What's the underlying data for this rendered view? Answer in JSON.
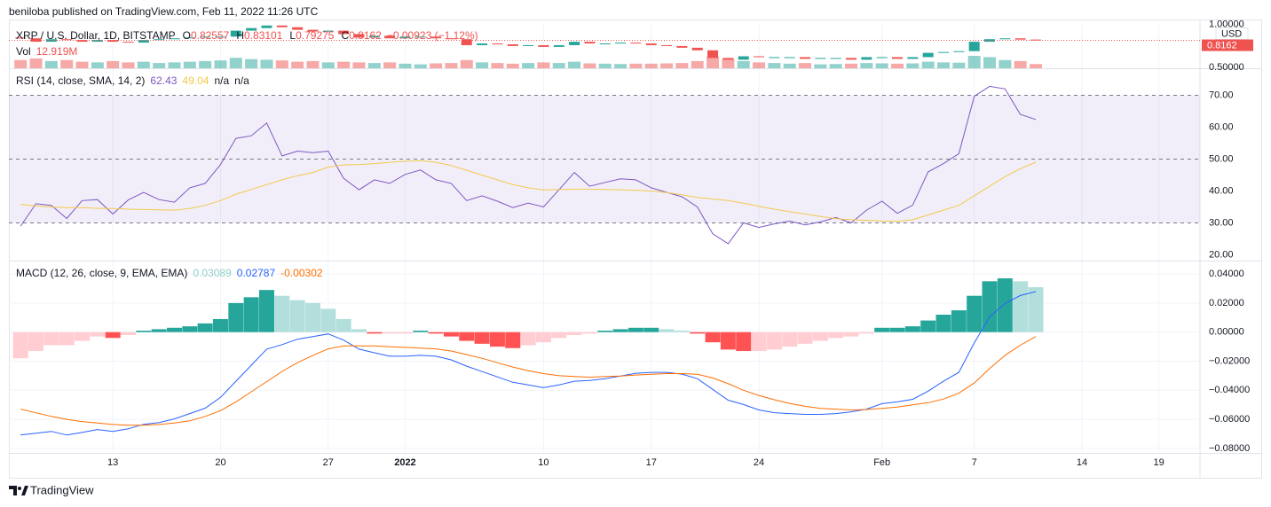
{
  "header": "beniloba published on TradingView.com, Feb 11, 2022 11:26 UTC",
  "footer": "TradingView",
  "chart_data": [
    {
      "type": "candlestick",
      "legend": {
        "symbol": "XRP / U.S. Dollar, 1D, BITSTAMP",
        "keys": [
          "O",
          "H",
          "L",
          "C"
        ],
        "high": 0.83101,
        "low": 0.79275,
        "change_label": "−0.00923 (−1.12%)"
      },
      "currency": "USD",
      "volume_name": "Vol",
      "volume_label": "12.919M",
      "up_color": "#26a69a",
      "down_color": "#ef5350",
      "open": [
        0.85,
        0.84,
        0.8,
        0.83,
        0.82,
        0.8,
        0.82,
        0.8,
        0.79,
        0.82,
        0.83,
        0.84,
        0.85,
        0.86,
        0.86,
        0.93,
        0.96,
        0.99,
        0.97,
        0.94,
        0.92,
        0.93,
        0.89,
        0.85,
        0.87,
        0.84,
        0.86,
        0.86,
        0.84,
        0.83,
        0.76,
        0.78,
        0.77,
        0.75,
        0.76,
        0.74,
        0.76,
        0.8,
        0.78,
        0.78,
        0.79,
        0.78,
        0.76,
        0.75,
        0.73,
        0.7,
        0.61,
        0.59,
        0.63,
        0.62,
        0.62,
        0.62,
        0.6,
        0.61,
        0.61,
        0.59,
        0.62,
        0.62,
        0.6,
        0.62,
        0.67,
        0.68,
        0.69,
        0.8,
        0.83,
        0.84,
        0.82557,
        null,
        null,
        null,
        null,
        null,
        null,
        null,
        null,
        null,
        null
      ],
      "close": [
        0.84,
        0.8,
        0.83,
        0.82,
        0.8,
        0.82,
        0.8,
        0.79,
        0.82,
        0.83,
        0.84,
        0.85,
        0.86,
        0.86,
        0.93,
        0.96,
        0.99,
        0.97,
        0.94,
        0.92,
        0.93,
        0.89,
        0.85,
        0.87,
        0.84,
        0.86,
        0.86,
        0.84,
        0.83,
        0.76,
        0.78,
        0.77,
        0.75,
        0.76,
        0.74,
        0.76,
        0.8,
        0.78,
        0.78,
        0.79,
        0.78,
        0.76,
        0.75,
        0.73,
        0.7,
        0.61,
        0.59,
        0.63,
        0.62,
        0.62,
        0.62,
        0.6,
        0.61,
        0.61,
        0.59,
        0.62,
        0.62,
        0.6,
        0.62,
        0.67,
        0.68,
        0.69,
        0.8,
        0.83,
        0.84,
        0.82543,
        0.8162,
        null,
        null,
        null,
        null,
        null,
        null,
        null,
        null,
        null,
        null
      ],
      "volume": [
        25,
        30,
        22,
        25,
        20,
        18,
        22,
        18,
        20,
        16,
        18,
        20,
        22,
        24,
        32,
        28,
        26,
        24,
        20,
        22,
        18,
        20,
        18,
        16,
        18,
        14,
        12,
        15,
        16,
        25,
        18,
        16,
        14,
        16,
        18,
        16,
        20,
        15,
        14,
        13,
        14,
        14,
        15,
        16,
        22,
        35,
        28,
        22,
        18,
        16,
        14,
        16,
        12,
        13,
        14,
        16,
        15,
        14,
        15,
        20,
        18,
        17,
        38,
        34,
        25,
        22,
        12.919,
        null,
        null,
        null,
        null,
        null,
        null,
        null,
        null,
        null,
        null
      ],
      "ylim": [
        0.49,
        1.05
      ],
      "yticks": [
        {
          "value": 0.5,
          "label": "0.50000"
        },
        {
          "value": 1,
          "label": "1.00000"
        }
      ]
    },
    {
      "type": "line",
      "title": "RSI (14, close, SMA, 14, 2)",
      "na_labels": [
        "n/a",
        "n/a"
      ],
      "series": [
        {
          "color": "#7e57c2",
          "values": [
            29,
            36,
            35.5,
            31.4,
            37,
            37.3,
            32.8,
            37.2,
            39.6,
            37.3,
            36.5,
            41,
            42.4,
            48.3,
            56.5,
            57.3,
            61.3,
            51,
            52.5,
            52,
            52.5,
            44,
            40.4,
            43.5,
            42.4,
            45.2,
            46.6,
            43.5,
            42.4,
            37,
            38.5,
            36.8,
            34.8,
            36.2,
            35,
            40.4,
            45.8,
            41.5,
            42.7,
            43.8,
            43.5,
            41,
            39.6,
            38.2,
            35,
            26.6,
            23.5,
            30,
            28.6,
            29.7,
            30.6,
            29.4,
            30.3,
            31.7,
            30,
            34,
            36.8,
            33,
            35.6,
            46,
            48.6,
            51.7,
            69.7,
            72.8,
            72,
            64,
            62.43,
            null,
            null,
            null,
            null,
            null,
            null,
            null,
            null,
            null,
            null
          ]
        },
        {
          "color": "#f2c94c",
          "values": [
            35.8,
            35.3,
            35,
            34.8,
            34.8,
            34.6,
            34.5,
            34.3,
            34.2,
            34.1,
            34,
            34.5,
            35.5,
            37,
            39,
            40.5,
            42,
            43.5,
            44.8,
            45.8,
            47.5,
            48.2,
            48.3,
            48.6,
            49,
            49.3,
            49.5,
            49,
            48,
            46.5,
            45,
            43.5,
            42,
            41,
            40.3,
            40.5,
            40.6,
            40.6,
            40.5,
            40.4,
            40.2,
            40,
            39.5,
            38.8,
            38,
            37.5,
            37,
            36.2,
            35.2,
            34.3,
            33.5,
            32.8,
            32,
            31.3,
            31,
            30.8,
            30.6,
            30.5,
            31,
            32.5,
            34,
            35.5,
            38.5,
            41.5,
            44.5,
            47,
            49.04,
            null,
            null,
            null,
            null,
            null,
            null,
            null,
            null,
            null,
            null
          ]
        }
      ],
      "band": [
        30,
        70
      ],
      "band_color": "#7e57c2",
      "levels": [
        70,
        50,
        30
      ],
      "ylim": [
        18.2,
        78.2
      ],
      "yticks": [
        {
          "value": 20,
          "label": "20.00"
        },
        {
          "value": 30,
          "label": "30.00"
        },
        {
          "value": 40,
          "label": "40.00"
        },
        {
          "value": 50,
          "label": "50.00"
        },
        {
          "value": 60,
          "label": "60.00"
        },
        {
          "value": 70,
          "label": "70.00"
        }
      ]
    },
    {
      "type": "combo",
      "title": "MACD (12, 26, close, 9, EMA, EMA)",
      "categories": [
        null,
        null,
        null,
        null,
        null,
        null,
        "13",
        null,
        null,
        null,
        null,
        null,
        null,
        "20",
        null,
        null,
        null,
        null,
        null,
        null,
        "27",
        null,
        null,
        null,
        null,
        "2022",
        null,
        null,
        null,
        null,
        null,
        null,
        null,
        null,
        "10",
        null,
        null,
        null,
        null,
        null,
        null,
        "17",
        null,
        null,
        null,
        null,
        null,
        null,
        "24",
        null,
        null,
        null,
        null,
        null,
        null,
        null,
        "Feb",
        null,
        null,
        null,
        null,
        null,
        "7",
        null,
        null,
        null,
        null,
        null,
        null,
        "14",
        null,
        null,
        null,
        null,
        "19",
        null,
        null
      ],
      "series": [
        {
          "kind": "bar",
          "colors": [
            "#26a69a",
            "#b2dfdb",
            "#ff5252",
            "#ffcdd2"
          ],
          "color": "#8fcfc7",
          "values": [
            -0.018,
            -0.013,
            -0.009,
            -0.009,
            -0.006,
            -0.003,
            -0.004,
            -0.002,
            0.001,
            0.002,
            0.003,
            0.004,
            0.006,
            0.009,
            0.02,
            0.024,
            0.029,
            0.025,
            0.022,
            0.02,
            0.016,
            0.009,
            0.002,
            -0.001,
            -0.001,
            -0.001,
            0.001,
            -0.001,
            -0.003,
            -0.006,
            -0.008,
            -0.01,
            -0.011,
            -0.009,
            -0.007,
            -0.004,
            -0.002,
            -0.001,
            0.001,
            0.002,
            0.003,
            0.003,
            0.002,
            0.001,
            -0.001,
            -0.007,
            -0.012,
            -0.013,
            -0.013,
            -0.012,
            -0.01,
            -0.008,
            -0.006,
            -0.004,
            -0.003,
            -0.001,
            0.003,
            0.003,
            0.004,
            0.008,
            0.012,
            0.015,
            0.025,
            0.035,
            0.037,
            0.035,
            0.03089,
            null,
            null,
            null,
            null,
            null,
            null,
            null,
            null,
            null,
            null
          ]
        },
        {
          "kind": "line",
          "color": "#2962ff",
          "values": [
            -0.0708,
            -0.0695,
            -0.0683,
            -0.0708,
            -0.069,
            -0.067,
            -0.0683,
            -0.0665,
            -0.0634,
            -0.0622,
            -0.0597,
            -0.056,
            -0.0523,
            -0.0449,
            -0.0338,
            -0.0228,
            -0.0117,
            -0.0086,
            -0.0049,
            -0.0031,
            -0.0012,
            -0.0055,
            -0.0117,
            -0.0142,
            -0.0166,
            -0.0166,
            -0.016,
            -0.0166,
            -0.0191,
            -0.0234,
            -0.0271,
            -0.0308,
            -0.0345,
            -0.0363,
            -0.0382,
            -0.0363,
            -0.0338,
            -0.0332,
            -0.032,
            -0.0302,
            -0.0283,
            -0.0277,
            -0.0277,
            -0.0289,
            -0.032,
            -0.0394,
            -0.0468,
            -0.0498,
            -0.0535,
            -0.0554,
            -0.056,
            -0.0566,
            -0.0566,
            -0.056,
            -0.0548,
            -0.053,
            -0.0492,
            -0.048,
            -0.0462,
            -0.0406,
            -0.0338,
            -0.0277,
            -0.0074,
            0.0105,
            0.0197,
            0.0252,
            0.02787,
            null,
            null,
            null,
            null,
            null,
            null,
            null,
            null,
            null,
            null
          ]
        },
        {
          "kind": "line",
          "color": "#ff6d00",
          "values": [
            -0.053,
            -0.0555,
            -0.058,
            -0.06,
            -0.0615,
            -0.0625,
            -0.0635,
            -0.064,
            -0.064,
            -0.0635,
            -0.0625,
            -0.061,
            -0.058,
            -0.054,
            -0.048,
            -0.041,
            -0.034,
            -0.027,
            -0.021,
            -0.016,
            -0.0115,
            -0.0095,
            -0.0095,
            -0.0095,
            -0.01,
            -0.0105,
            -0.011,
            -0.0115,
            -0.013,
            -0.0155,
            -0.018,
            -0.021,
            -0.024,
            -0.0265,
            -0.0285,
            -0.03,
            -0.0305,
            -0.031,
            -0.0305,
            -0.0302,
            -0.0295,
            -0.029,
            -0.0285,
            -0.0285,
            -0.029,
            -0.0315,
            -0.0355,
            -0.04,
            -0.0435,
            -0.0465,
            -0.049,
            -0.051,
            -0.0525,
            -0.053,
            -0.0535,
            -0.0532,
            -0.0525,
            -0.0515,
            -0.05,
            -0.0485,
            -0.046,
            -0.042,
            -0.035,
            -0.025,
            -0.016,
            -0.009,
            -0.00302,
            null,
            null,
            null,
            null,
            null,
            null,
            null,
            null,
            null,
            null
          ]
        }
      ],
      "ylim": [
        -0.0831,
        0.0486
      ],
      "yticks": [
        {
          "value": -0.08,
          "label": "−0.08000"
        },
        {
          "value": -0.06,
          "label": "−0.06000"
        },
        {
          "value": -0.04,
          "label": "−0.04000"
        },
        {
          "value": -0.02,
          "label": "−0.02000"
        },
        {
          "value": 0,
          "label": "0.00000"
        },
        {
          "value": 0.02,
          "label": "0.02000"
        },
        {
          "value": 0.04,
          "label": "0.04000"
        }
      ]
    }
  ]
}
